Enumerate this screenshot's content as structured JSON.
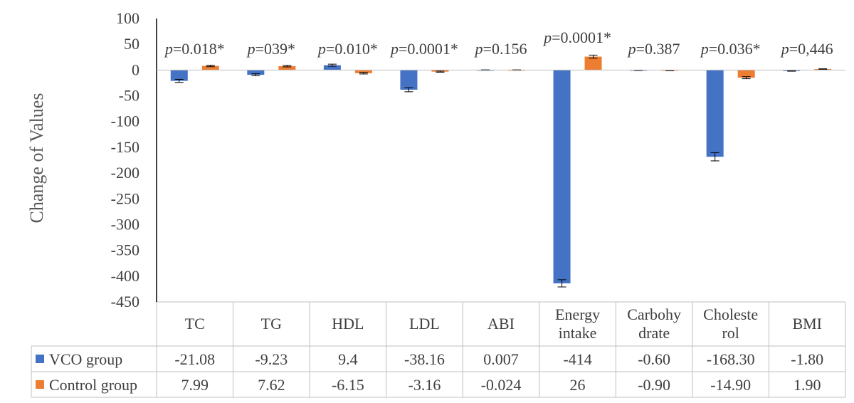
{
  "chart_data": {
    "type": "bar",
    "ylabel": "Change of Values",
    "ylim": [
      -450,
      100
    ],
    "yticks": [
      100,
      50,
      0,
      -50,
      -100,
      -150,
      -200,
      -250,
      -300,
      -350,
      -400,
      -450
    ],
    "categories": [
      [
        "TC"
      ],
      [
        "TG"
      ],
      [
        "HDL"
      ],
      [
        "LDL"
      ],
      [
        "ABI"
      ],
      [
        "Energy",
        "intake"
      ],
      [
        "Carbohy",
        "drate"
      ],
      [
        "Choleste",
        "rol"
      ],
      [
        "BMI"
      ]
    ],
    "p_values": [
      {
        "p": "p",
        "rest": "=0.018*"
      },
      {
        "p": "p",
        "rest": "=039*"
      },
      {
        "p": "p",
        "rest": "=0.010*"
      },
      {
        "p": "p",
        "rest": "=0.0001*"
      },
      {
        "p": "p",
        "rest": "=0.156"
      },
      {
        "p": "p",
        "rest": "=0.0001*"
      },
      {
        "p": "p",
        "rest": "=0.387"
      },
      {
        "p": "p",
        "rest": "=0.036*"
      },
      {
        "p": "p",
        "rest": "=0,446"
      }
    ],
    "series": [
      {
        "name": "VCO group",
        "color": "#4472C4",
        "values": [
          -21.08,
          -9.23,
          9.4,
          -38.16,
          0.007,
          -414,
          -0.6,
          -168.3,
          -1.8
        ],
        "labels": [
          "-21.08",
          "-9.23",
          "9.4",
          "-38.16",
          "0.007",
          "-414",
          "-0.60",
          "-168.30",
          "-1.80"
        ],
        "errors": [
          3,
          2,
          2,
          4,
          0.5,
          7,
          0.5,
          8,
          0.5
        ]
      },
      {
        "name": "Control group",
        "color": "#ED7D31",
        "values": [
          7.99,
          7.62,
          -6.15,
          -3.16,
          -0.024,
          26,
          -0.9,
          -14.9,
          1.9
        ],
        "labels": [
          "7.99",
          "7.62",
          "-6.15",
          "-3.16",
          "-0.024",
          "26",
          "-0.90",
          "-14.90",
          "1.90"
        ],
        "errors": [
          1.5,
          1.5,
          1.5,
          1,
          0.5,
          3,
          0.5,
          2,
          0.5
        ]
      }
    ],
    "grid": false,
    "legend": "table-rows"
  }
}
